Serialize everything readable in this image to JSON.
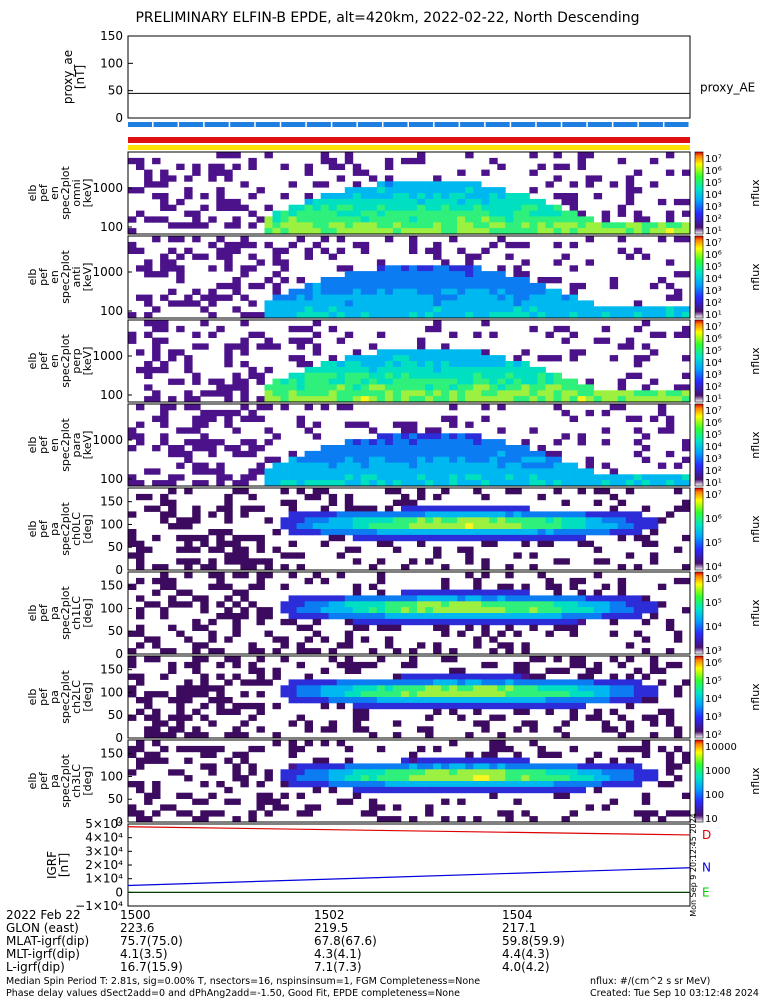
{
  "title": "PRELIMINARY ELFIN-B EPDE, alt=420km, 2022-02-22, North Descending",
  "proxy_panel": {
    "ylabel_lines": [
      "proxy_ae",
      "[nT]"
    ],
    "yticks": [
      "150",
      "100",
      "50",
      "0"
    ],
    "legend": "proxy_AE"
  },
  "spectro_panels": [
    {
      "label_lines": [
        "elb",
        "pef",
        "en",
        "spec2plot",
        "omni",
        "[keV]"
      ],
      "yticks": [
        "1000",
        "100"
      ],
      "cbar_ticks": [
        "10⁷",
        "10⁶",
        "10⁵",
        "10⁴",
        "10³",
        "10²",
        "10¹"
      ],
      "cbar_label": "nflux"
    },
    {
      "label_lines": [
        "elb",
        "pef",
        "en",
        "spec2plot",
        "anti",
        "[keV]"
      ],
      "yticks": [
        "1000",
        "100"
      ],
      "cbar_ticks": [
        "10⁷",
        "10⁶",
        "10⁵",
        "10⁴",
        "10³",
        "10²",
        "10¹"
      ],
      "cbar_label": "nflux"
    },
    {
      "label_lines": [
        "elb",
        "pef",
        "en",
        "spec2plot",
        "perp",
        "[keV]"
      ],
      "yticks": [
        "1000",
        "100"
      ],
      "cbar_ticks": [
        "10⁷",
        "10⁶",
        "10⁵",
        "10⁴",
        "10³",
        "10²",
        "10¹"
      ],
      "cbar_label": "nflux"
    },
    {
      "label_lines": [
        "elb",
        "pef",
        "en",
        "spec2plot",
        "para",
        "[keV]"
      ],
      "yticks": [
        "1000",
        "100"
      ],
      "cbar_ticks": [
        "10⁷",
        "10⁶",
        "10⁵",
        "10⁴",
        "10³",
        "10²",
        "10¹"
      ],
      "cbar_label": "nflux"
    },
    {
      "label_lines": [
        "elb",
        "pef",
        "pa",
        "spec2plot",
        "ch0LC",
        "[deg]"
      ],
      "yticks": [
        "150",
        "100",
        "50",
        "0"
      ],
      "cbar_ticks": [
        "10⁷",
        "10⁶",
        "10⁵",
        "10⁴"
      ],
      "cbar_label": "nflux"
    },
    {
      "label_lines": [
        "elb",
        "pef",
        "pa",
        "spec2plot",
        "ch1LC",
        "[deg]"
      ],
      "yticks": [
        "150",
        "100",
        "50",
        "0"
      ],
      "cbar_ticks": [
        "10⁶",
        "10⁵",
        "10⁴",
        "10³"
      ],
      "cbar_label": "nflux"
    },
    {
      "label_lines": [
        "elb",
        "pef",
        "pa",
        "spec2plot",
        "ch2LC",
        "[deg]"
      ],
      "yticks": [
        "150",
        "100",
        "50",
        "0"
      ],
      "cbar_ticks": [
        "10⁶",
        "10⁵",
        "10⁴",
        "10³",
        "10²"
      ],
      "cbar_label": "nflux"
    },
    {
      "label_lines": [
        "elb",
        "pef",
        "pa",
        "spec2plot",
        "ch3LC",
        "[deg]"
      ],
      "yticks": [
        "150",
        "100",
        "50",
        "0"
      ],
      "cbar_ticks": [
        "10000",
        "1000",
        "100",
        "10"
      ],
      "cbar_label": "nflux"
    }
  ],
  "igrf_panel": {
    "ylabel_lines": [
      "IGRF",
      "[nT]"
    ],
    "yticks": [
      "5×10⁴",
      "4×10⁴",
      "3×10⁴",
      "2×10⁴",
      "1×10⁴",
      "0",
      "−1×10⁴"
    ],
    "legend": [
      "D",
      "N",
      "E"
    ],
    "legend_colors": [
      "#dd0000",
      "#0000dd",
      "#00cc00"
    ]
  },
  "watermark": "Mon Sep  9 20:12:45 2024",
  "bottom_table": {
    "row_labels": [
      "2022 Feb 22",
      "GLON (east)",
      "MLAT-igrf(dip)",
      "MLT-igrf(dip)",
      "L-igrf(dip)"
    ],
    "columns": [
      [
        "1500",
        "223.6",
        "75.7(75.0)",
        "4.1(3.5)",
        "16.7(15.9)"
      ],
      [
        "1502",
        "219.5",
        "67.8(67.6)",
        "4.3(4.1)",
        "7.1(7.3)"
      ],
      [
        "1504",
        "217.1",
        "59.8(59.9)",
        "4.4(4.3)",
        "4.0(4.2)"
      ]
    ]
  },
  "footer": {
    "line1": "Median Spin Period T: 2.81s, sig=0.00% T, nsectors=16, nspinsinsum=1, FGM Completeness=None",
    "line2": "Phase delay values dSect2add=0 and dPhAng2add=-1.50, Good Fit, EPDE completeness=None",
    "units": "nflux: #/(cm^2 s sr MeV)",
    "created": "Created: Tue Sep 10 03:12:48 2024"
  },
  "colors": {
    "bar_blue": "#1f7fe0",
    "bar_red": "#e01010",
    "bar_yellow": "#ffe000"
  },
  "chart_data": {
    "type": "heatmap",
    "title": "PRELIMINARY ELFIN-B EPDE, alt=420km, 2022-02-22, North Descending",
    "x_ticks": [
      "1500",
      "1502",
      "1504"
    ],
    "proxy_ae": {
      "ylim": [
        0,
        150
      ],
      "value": 45
    },
    "igrf": {
      "ylim": [
        -10000,
        50000
      ],
      "D": {
        "start": 48000,
        "end": 42000
      },
      "N": {
        "start": 5000,
        "end": 18000
      },
      "E": {
        "start": 0,
        "end": 0
      }
    }
  }
}
